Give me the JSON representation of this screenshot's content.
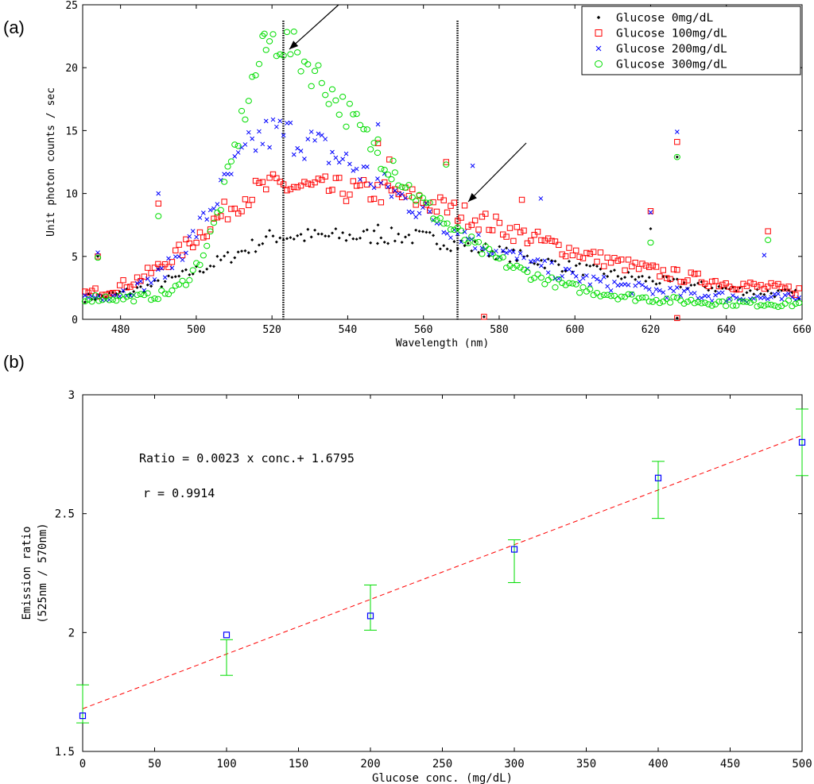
{
  "panel_labels": {
    "a": "(a)",
    "b": "(b)"
  },
  "chart_data": [
    {
      "id": "a",
      "type": "scatter",
      "xlabel": "Wavelength (nm)",
      "ylabel": "Unit photon counts / sec",
      "xlim": [
        470,
        660
      ],
      "ylim": [
        0,
        25
      ],
      "xticks": [
        480,
        500,
        520,
        540,
        560,
        580,
        600,
        620,
        640,
        660
      ],
      "yticks": [
        0,
        5,
        10,
        15,
        20,
        25
      ],
      "vlines": [
        523,
        569
      ],
      "legend_position": "top-right",
      "colors": {
        "s0": "#000000",
        "s100": "#ff0000",
        "s200": "#0000ff",
        "s300": "#00dd00",
        "arrow": "#000000"
      },
      "series": [
        {
          "name": "Glucose 0mg/dL",
          "marker": "dot",
          "peak": 6.6,
          "tail": 1.3,
          "spikes": [
            [
              474,
              5.0
            ],
            [
              490,
              4.0
            ],
            [
              548,
              7.5
            ],
            [
              576,
              0.2
            ],
            [
              620,
              7.2
            ],
            [
              627,
              12.9
            ],
            [
              627,
              0.1
            ]
          ]
        },
        {
          "name": "Glucose 100mg/dL",
          "marker": "square",
          "peak": 10.6,
          "tail": 1.6,
          "spikes": [
            [
              474,
              5.0
            ],
            [
              490,
              9.2
            ],
            [
              548,
              14.0
            ],
            [
              551,
              12.7
            ],
            [
              566,
              12.5
            ],
            [
              576,
              0.2
            ],
            [
              586,
              9.5
            ],
            [
              620,
              8.6
            ],
            [
              627,
              14.1
            ],
            [
              627,
              0.1
            ],
            [
              651,
              7.0
            ]
          ]
        },
        {
          "name": "Glucose 200mg/dL",
          "marker": "x",
          "peak": 14.8,
          "tail": 1.5,
          "spikes": [
            [
              474,
              5.3
            ],
            [
              490,
              10.0
            ],
            [
              548,
              15.5
            ],
            [
              573,
              12.2
            ],
            [
              591,
              9.6
            ],
            [
              620,
              8.5
            ],
            [
              627,
              14.9
            ],
            [
              650,
              5.1
            ]
          ]
        },
        {
          "name": "Glucose 300mg/dL",
          "marker": "circle",
          "peak": 22.2,
          "tail": 1.2,
          "spikes": [
            [
              474,
              4.9
            ],
            [
              490,
              8.2
            ],
            [
              518,
              22.7
            ],
            [
              548,
              14.3
            ],
            [
              552,
              12.6
            ],
            [
              566,
              12.3
            ],
            [
              620,
              6.1
            ],
            [
              627,
              12.9
            ],
            [
              651,
              6.3
            ]
          ]
        }
      ]
    },
    {
      "id": "b",
      "type": "scatter",
      "xlabel": "Glucose conc. (mg/dL)",
      "ylabel": "Emission ratio",
      "ylabel2": "(525nm / 570nm)",
      "xlim": [
        0,
        500
      ],
      "ylim": [
        1.5,
        3
      ],
      "xticks": [
        0,
        50,
        100,
        150,
        200,
        250,
        300,
        350,
        400,
        450,
        500
      ],
      "yticks": [
        1.5,
        2,
        2.5,
        3
      ],
      "ytick_labels": [
        "1.5",
        "2",
        "2.5",
        "3"
      ],
      "x": [
        0,
        100,
        200,
        300,
        400,
        500
      ],
      "y": [
        1.65,
        1.99,
        2.07,
        2.35,
        2.65,
        2.8
      ],
      "err_low": [
        1.62,
        1.82,
        2.01,
        2.21,
        2.48,
        2.66
      ],
      "err_high": [
        1.78,
        1.97,
        2.2,
        2.39,
        2.72,
        2.94
      ],
      "fit": {
        "slope": 0.0023,
        "intercept": 1.6795
      },
      "equation": "Ratio = 0.0023 x conc.+ 1.6795",
      "r_text": "r = 0.9914",
      "colors": {
        "marker": "#0000ff",
        "error": "#00dd00",
        "fit": "#ff0000"
      }
    }
  ]
}
